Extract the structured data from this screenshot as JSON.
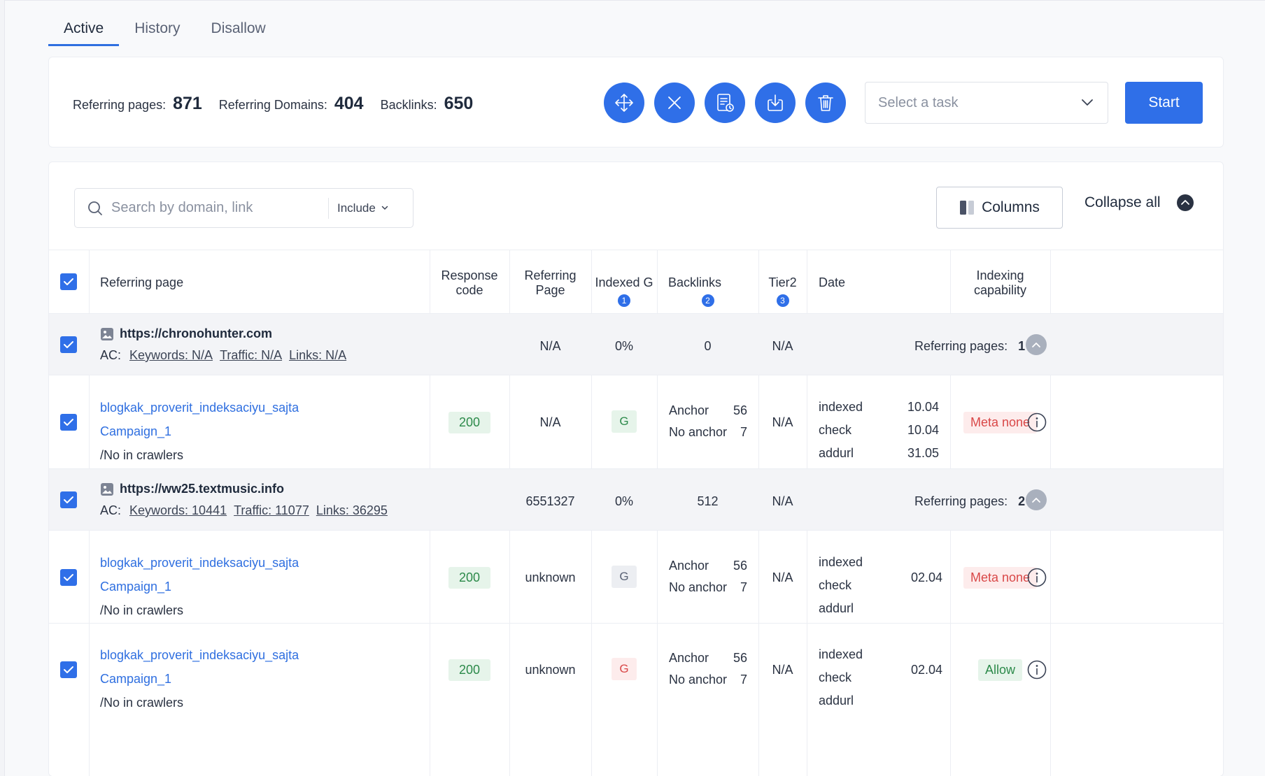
{
  "tabs": [
    {
      "label": "Active",
      "active": true
    },
    {
      "label": "History",
      "active": false
    },
    {
      "label": "Disallow",
      "active": false
    }
  ],
  "summary": {
    "referring_pages_label": "Referring pages:",
    "referring_pages_value": "871",
    "referring_domains_label": "Referring Domains:",
    "referring_domains_value": "404",
    "backlinks_label": "Backlinks:",
    "backlinks_value": "650",
    "action_icons": [
      "move-icon",
      "close-icon",
      "report-icon",
      "download-icon",
      "trash-icon"
    ],
    "task_placeholder": "Select a task",
    "start_label": "Start"
  },
  "toolbar": {
    "search_placeholder": "Search by domain, link",
    "include_label": "Include",
    "columns_label": "Columns",
    "collapse_all_label": "Collapse all"
  },
  "table": {
    "headers": {
      "referring_page": "Referring page",
      "response_code_1": "Response",
      "response_code_2": "code",
      "referring_page_2_1": "Referring",
      "referring_page_2_2": "Page",
      "indexed_g": "Indexed G",
      "indexed_g_badge": "1",
      "backlinks": "Backlinks",
      "backlinks_badge": "2",
      "tier2": "Tier2",
      "tier2_badge": "3",
      "date": "Date",
      "indexing_1": "Indexing",
      "indexing_2": "capability"
    },
    "groups": [
      {
        "domain": "https://chronohunter.com",
        "ac_label": "AC:",
        "keywords": "Keywords: N/A",
        "traffic": "Traffic: N/A",
        "links": "Links: N/A",
        "referring_page": "N/A",
        "indexed": "0%",
        "backlinks": "0",
        "tier2": "N/A",
        "ref_pages_label": "Referring pages:",
        "ref_pages_value": "1",
        "rows": [
          {
            "link": "blogkak_proverit_indeksaciyu_sajta",
            "campaign": "Campaign_1",
            "crawlers": "/No in crawlers",
            "code": "200",
            "referring_page": "N/A",
            "g": "G",
            "anchor_label": "Anchor",
            "anchor_value": "56",
            "no_anchor_label": "No anchor",
            "no_anchor_value": "7",
            "tier2": "N/A",
            "date_labels": [
              "indexed",
              "check",
              "addurl"
            ],
            "date_values": [
              "10.04",
              "10.04",
              "31.05"
            ],
            "capability": "Meta none"
          }
        ]
      },
      {
        "domain": "https://ww25.textmusic.info",
        "ac_label": "AC:",
        "keywords": "Keywords: 10441",
        "traffic": "Traffic: 11077",
        "links": "Links: 36295",
        "referring_page": "6551327",
        "indexed": "0%",
        "backlinks": "512",
        "tier2": "N/A",
        "ref_pages_label": "Referring pages:",
        "ref_pages_value": "2",
        "rows": [
          {
            "link": "blogkak_proverit_indeksaciyu_sajta",
            "campaign": "Campaign_1",
            "crawlers": "/No in crawlers",
            "code": "200",
            "referring_page": "unknown",
            "g": "G",
            "anchor_label": "Anchor",
            "anchor_value": "56",
            "no_anchor_label": "No anchor",
            "no_anchor_value": "7",
            "tier2": "N/A",
            "date_labels": [
              "indexed",
              "check",
              "addurl"
            ],
            "date_value": "02.04",
            "capability": "Meta none"
          },
          {
            "link": "blogkak_proverit_indeksaciyu_sajta",
            "campaign": "Campaign_1",
            "crawlers": "/No in crawlers",
            "code": "200",
            "referring_page": "unknown",
            "g": "G",
            "anchor_label": "Anchor",
            "anchor_value": "56",
            "no_anchor_label": "No anchor",
            "no_anchor_value": "7",
            "tier2": "N/A",
            "date_labels": [
              "indexed",
              "check",
              "addurl"
            ],
            "date_value": "02.04",
            "capability": "Allow"
          }
        ]
      }
    ]
  },
  "colors": {
    "accent": "#2f6fe8",
    "green_bg": "#e6f4ea",
    "green_text": "#2c8a4a",
    "red_bg": "#fdecec",
    "red_text": "#d94848"
  }
}
